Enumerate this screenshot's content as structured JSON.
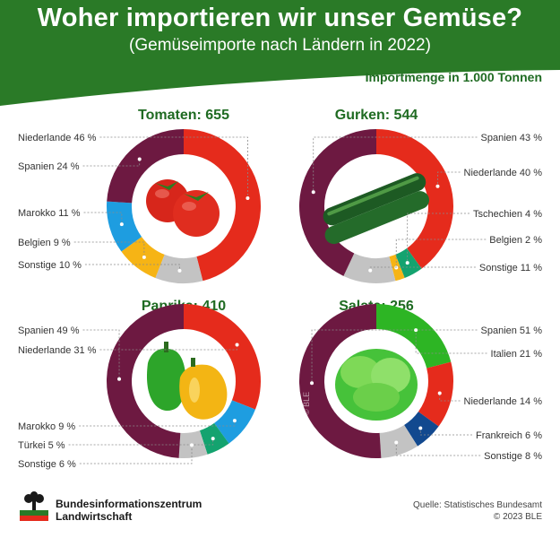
{
  "header": {
    "title": "Woher importieren wir unser Gemüse?",
    "subtitle": "(Gemüseimporte nach Ländern in 2022)"
  },
  "unit_label": "Importmenge in 1.000 Tonnen",
  "watermark": "© BLE",
  "colors": {
    "header_green": "#2a7a27",
    "red": "#e52b1c",
    "purple": "#6d1941",
    "blue": "#1e9de0",
    "yellow": "#f6b415",
    "gray": "#c3c3c3",
    "teal": "#14a36f",
    "green": "#2db524",
    "light_green": "#26b22a",
    "dark_blue": "#12498f"
  },
  "chart_data": [
    {
      "type": "pie",
      "title": "Tomaten: 655",
      "vegetable": "tomato-icon",
      "categories": [
        "Niederlande",
        "Spanien",
        "Marokko",
        "Belgien",
        "Sonstige"
      ],
      "labels": [
        "Niederlande 46 %",
        "Spanien 24 %",
        "Marokko 11 %",
        "Belgien 9 %",
        "Sonstige 10 %"
      ],
      "values": [
        46,
        24,
        11,
        9,
        10
      ],
      "slice_order": [
        "Niederlande",
        "Sonstige",
        "Belgien",
        "Marokko",
        "Spanien"
      ],
      "slice_colors": {
        "Niederlande": "#e52b1c",
        "Sonstige": "#c3c3c3",
        "Belgien": "#f6b415",
        "Marokko": "#1e9de0",
        "Spanien": "#6d1941"
      },
      "label_side": "left"
    },
    {
      "type": "pie",
      "title": "Gurken: 544",
      "vegetable": "cucumber-icon",
      "categories": [
        "Spanien",
        "Niederlande",
        "Tschechien",
        "Belgien",
        "Sonstige"
      ],
      "labels": [
        "Spanien 43 %",
        "Niederlande 40 %",
        "Tschechien 4 %",
        "Belgien 2 %",
        "Sonstige 11 %"
      ],
      "values": [
        43,
        40,
        4,
        2,
        11
      ],
      "slice_order": [
        "Niederlande",
        "Tschechien",
        "Belgien",
        "Sonstige",
        "Spanien"
      ],
      "slice_colors": {
        "Niederlande": "#e52b1c",
        "Tschechien": "#14a36f",
        "Belgien": "#f6b415",
        "Sonstige": "#c3c3c3",
        "Spanien": "#6d1941"
      },
      "label_side": "right"
    },
    {
      "type": "pie",
      "title": "Paprika: 410",
      "vegetable": "pepper-icon",
      "categories": [
        "Spanien",
        "Niederlande",
        "Marokko",
        "Türkei",
        "Sonstige"
      ],
      "labels": [
        "Spanien 49 %",
        "Niederlande 31 %",
        "Marokko 9 %",
        "Türkei 5 %",
        "Sonstige 6 %"
      ],
      "values": [
        49,
        31,
        9,
        5,
        6
      ],
      "slice_order": [
        "Niederlande",
        "Marokko",
        "Türkei",
        "Sonstige",
        "Spanien"
      ],
      "slice_colors": {
        "Niederlande": "#e52b1c",
        "Marokko": "#1e9de0",
        "Türkei": "#14a36f",
        "Sonstige": "#c3c3c3",
        "Spanien": "#6d1941"
      },
      "label_side": "left"
    },
    {
      "type": "pie",
      "title": "Salate: 256",
      "vegetable": "lettuce-icon",
      "categories": [
        "Spanien",
        "Italien",
        "Niederlande",
        "Frankreich",
        "Sonstige"
      ],
      "labels": [
        "Spanien 51 %",
        "Italien 21 %",
        "Niederlande 14 %",
        "Frankreich 6 %",
        "Sonstige 8 %"
      ],
      "values": [
        51,
        21,
        14,
        6,
        8
      ],
      "slice_order": [
        "Italien",
        "Niederlande",
        "Frankreich",
        "Sonstige",
        "Spanien"
      ],
      "slice_colors": {
        "Italien": "#2db524",
        "Niederlande": "#e52b1c",
        "Frankreich": "#12498f",
        "Sonstige": "#c3c3c3",
        "Spanien": "#6d1941"
      },
      "label_side": "right"
    }
  ],
  "footer": {
    "org_line1": "Bundesinformationszentrum",
    "org_line2": "Landwirtschaft",
    "source": "Quelle: Statistisches Bundesamt",
    "copyright": "© 2023 BLE"
  }
}
